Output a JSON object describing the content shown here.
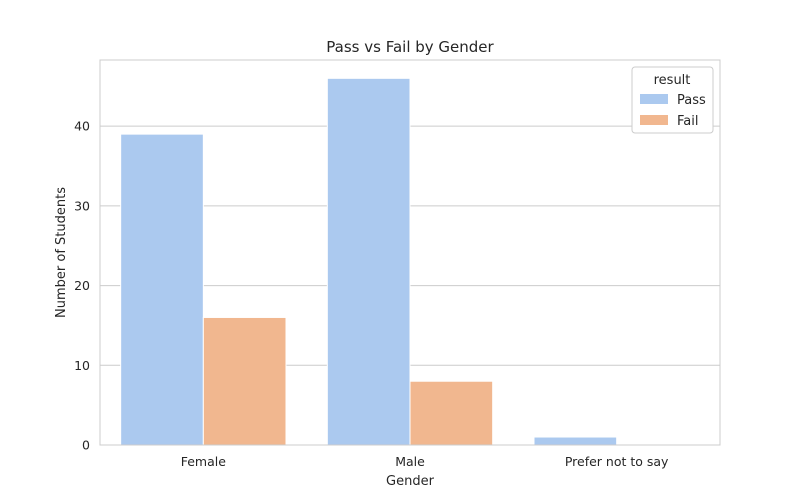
{
  "chart_data": {
    "type": "bar",
    "title": "Pass vs Fail by Gender",
    "xlabel": "Gender",
    "ylabel": "Number of Students",
    "categories": [
      "Female",
      "Male",
      "Prefer not to say"
    ],
    "series": [
      {
        "name": "Pass",
        "values": [
          39,
          46,
          1
        ],
        "color": "#abc9ef"
      },
      {
        "name": "Fail",
        "values": [
          16,
          8,
          0
        ],
        "color": "#f1b78f"
      }
    ],
    "ylim": [
      0,
      48.3
    ],
    "yticks": [
      0,
      10,
      20,
      30,
      40
    ],
    "grid": true,
    "legend": {
      "title": "result",
      "position": "top-right"
    }
  }
}
